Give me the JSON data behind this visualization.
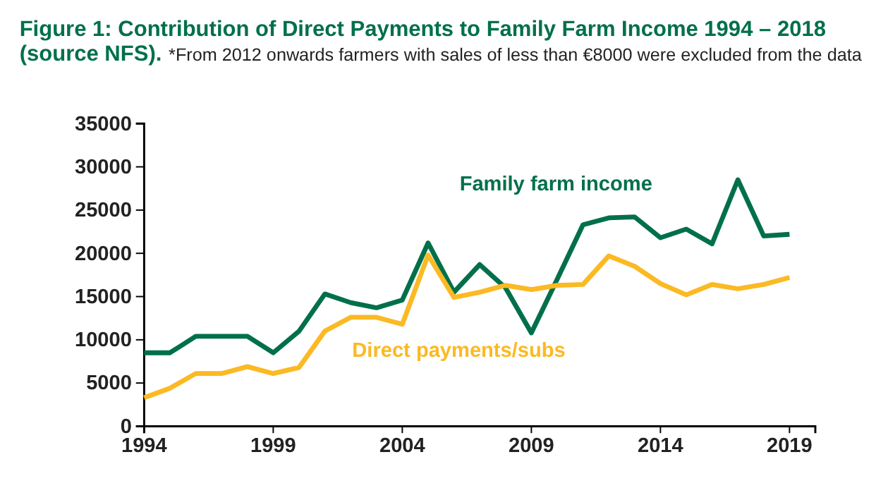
{
  "chart_data": {
    "type": "line",
    "title": "Figure 1: Contribution of Direct Payments to Family Farm Income 1994 – 2018 (source NFS).",
    "annotations": [
      "*From 2012 onwards farmers with sales of less than €8000 were excluded from the data"
    ],
    "x": [
      1994,
      1995,
      1996,
      1997,
      1998,
      1999,
      2000,
      2001,
      2002,
      2003,
      2004,
      2005,
      2006,
      2007,
      2008,
      2009,
      2010,
      2011,
      2012,
      2013,
      2014,
      2015,
      2016,
      2017,
      2018,
      2019
    ],
    "series": [
      {
        "name": "Family farm income",
        "color": "#00704a",
        "values": [
          8500,
          8500,
          10400,
          10400,
          10400,
          8500,
          11000,
          15300,
          14300,
          13700,
          14600,
          21200,
          15500,
          18700,
          16000,
          10800,
          17000,
          23300,
          24100,
          24200,
          21800,
          22800,
          21100,
          28500,
          22000,
          22200
        ]
      },
      {
        "name": "Direct payments/subs",
        "color": "#fbb923",
        "values": [
          3300,
          4400,
          6100,
          6100,
          6900,
          6100,
          6800,
          11000,
          12600,
          12600,
          11800,
          19800,
          14900,
          15500,
          16300,
          15800,
          16300,
          16400,
          19700,
          18500,
          16500,
          15200,
          16400,
          15900,
          16400,
          17200
        ]
      }
    ],
    "xlim": [
      1994,
      2020
    ],
    "xticks": [
      1994,
      1999,
      2004,
      2009,
      2014,
      2019
    ],
    "ylim": [
      0,
      35000
    ],
    "yticks": [
      0,
      5000,
      10000,
      15000,
      20000,
      25000,
      30000,
      35000
    ],
    "grid": false,
    "marker": "none",
    "line_style": "solid"
  }
}
